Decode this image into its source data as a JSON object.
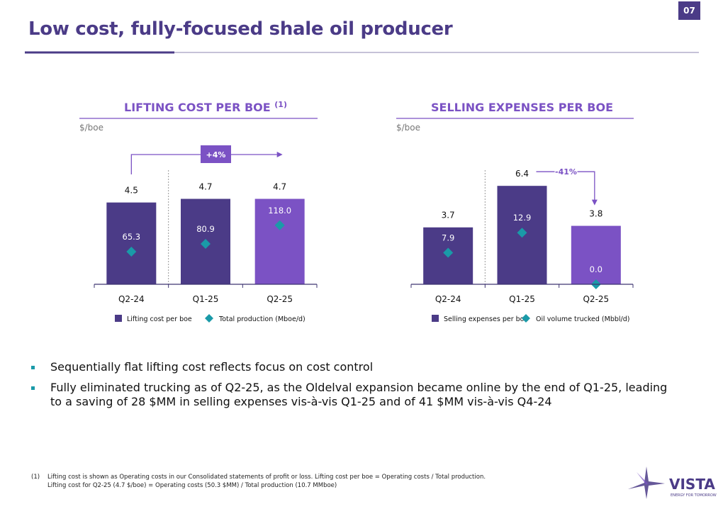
{
  "page_number": "07",
  "title": "Low cost, fully-focused shale oil producer",
  "chart_data": [
    {
      "type": "bar",
      "title": "LIFTING COST PER BOE",
      "title_note": "(1)",
      "unit_label": "$/boe",
      "categories": [
        "Q2-24",
        "Q1-25",
        "Q2-25"
      ],
      "series": [
        {
          "name": "Lifting cost per boe",
          "colors": [
            "#4b3b87",
            "#4b3b87",
            "#7b52c4"
          ],
          "values": [
            4.5,
            4.7,
            4.7
          ]
        },
        {
          "name": "Total production (Mboe/d)",
          "axis": "y2",
          "color": "#1a9aa8",
          "values": [
            65.3,
            80.9,
            118.0
          ],
          "value_labels": [
            "65.3",
            "80.9",
            "118.0"
          ]
        }
      ],
      "ylim": [
        0,
        5.5
      ],
      "y2lim": [
        0,
        200
      ],
      "annotation": "+4%"
    },
    {
      "type": "bar",
      "title": "SELLING EXPENSES PER BOE",
      "unit_label": "$/boe",
      "categories": [
        "Q2-24",
        "Q1-25",
        "Q2-25"
      ],
      "series": [
        {
          "name": "Selling expenses per boe",
          "colors": [
            "#4b3b87",
            "#4b3b87",
            "#7b52c4"
          ],
          "values": [
            3.7,
            6.4,
            3.8
          ]
        },
        {
          "name": "Oil volume trucked (Mbbl/d)",
          "axis": "y2",
          "color": "#1a9aa8",
          "values": [
            7.9,
            12.9,
            0.0
          ],
          "value_labels": [
            "7.9",
            "12.9",
            "0.0"
          ]
        }
      ],
      "ylim": [
        0,
        6.5
      ],
      "y2lim": [
        0,
        25
      ],
      "annotation": "-41%"
    }
  ],
  "bullets": [
    "Sequentially flat lifting cost reflects focus on cost control",
    "Fully eliminated trucking as of Q2-25, as the Oldelval expansion became online by the end of Q1-25, leading to a saving of 28 $MM in selling expenses vis-à-vis Q1-25 and of 41 $MM vis-à-vis Q4-24"
  ],
  "footnote": {
    "marker": "(1)",
    "lines": [
      "Lifting cost is shown as Operating costs in our Consolidated statements of profit or loss. Lifting cost per boe = Operating costs / Total production.",
      "Lifting cost for Q2-25 (4.7 $/boe) = Operating costs (50.3 $MM) / Total production (10.7 MMboe)"
    ]
  },
  "logo": {
    "name": "VISTA",
    "tagline": "ENERGY FOR TOMORROW"
  }
}
